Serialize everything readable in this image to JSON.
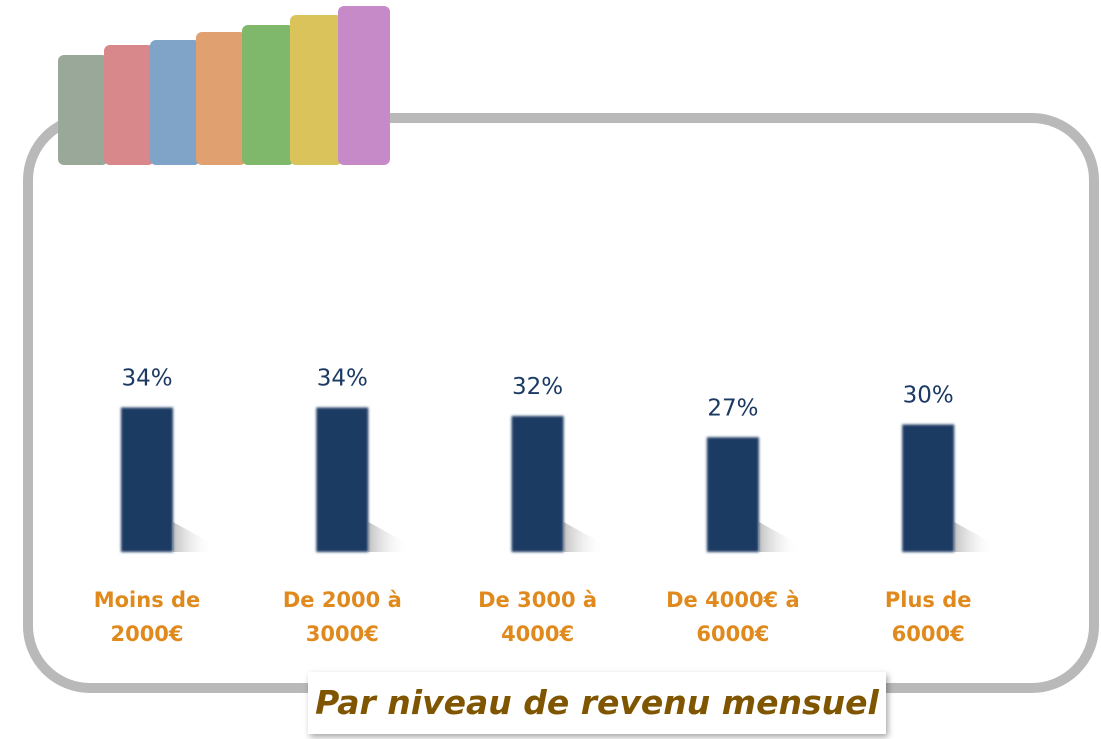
{
  "chart_data": {
    "type": "bar",
    "title": "Par niveau de revenu mensuel",
    "categories": [
      "Moins de 2000€",
      "De 2000 à 3000€",
      "De 3000 à 4000€",
      "De 4000€ à 6000€",
      "Plus de 6000€"
    ],
    "values": [
      34,
      34,
      32,
      27,
      30
    ],
    "value_labels": [
      "34%",
      "34%",
      "32%",
      "27%",
      "30%"
    ],
    "color": "#1b3a63"
  }
}
